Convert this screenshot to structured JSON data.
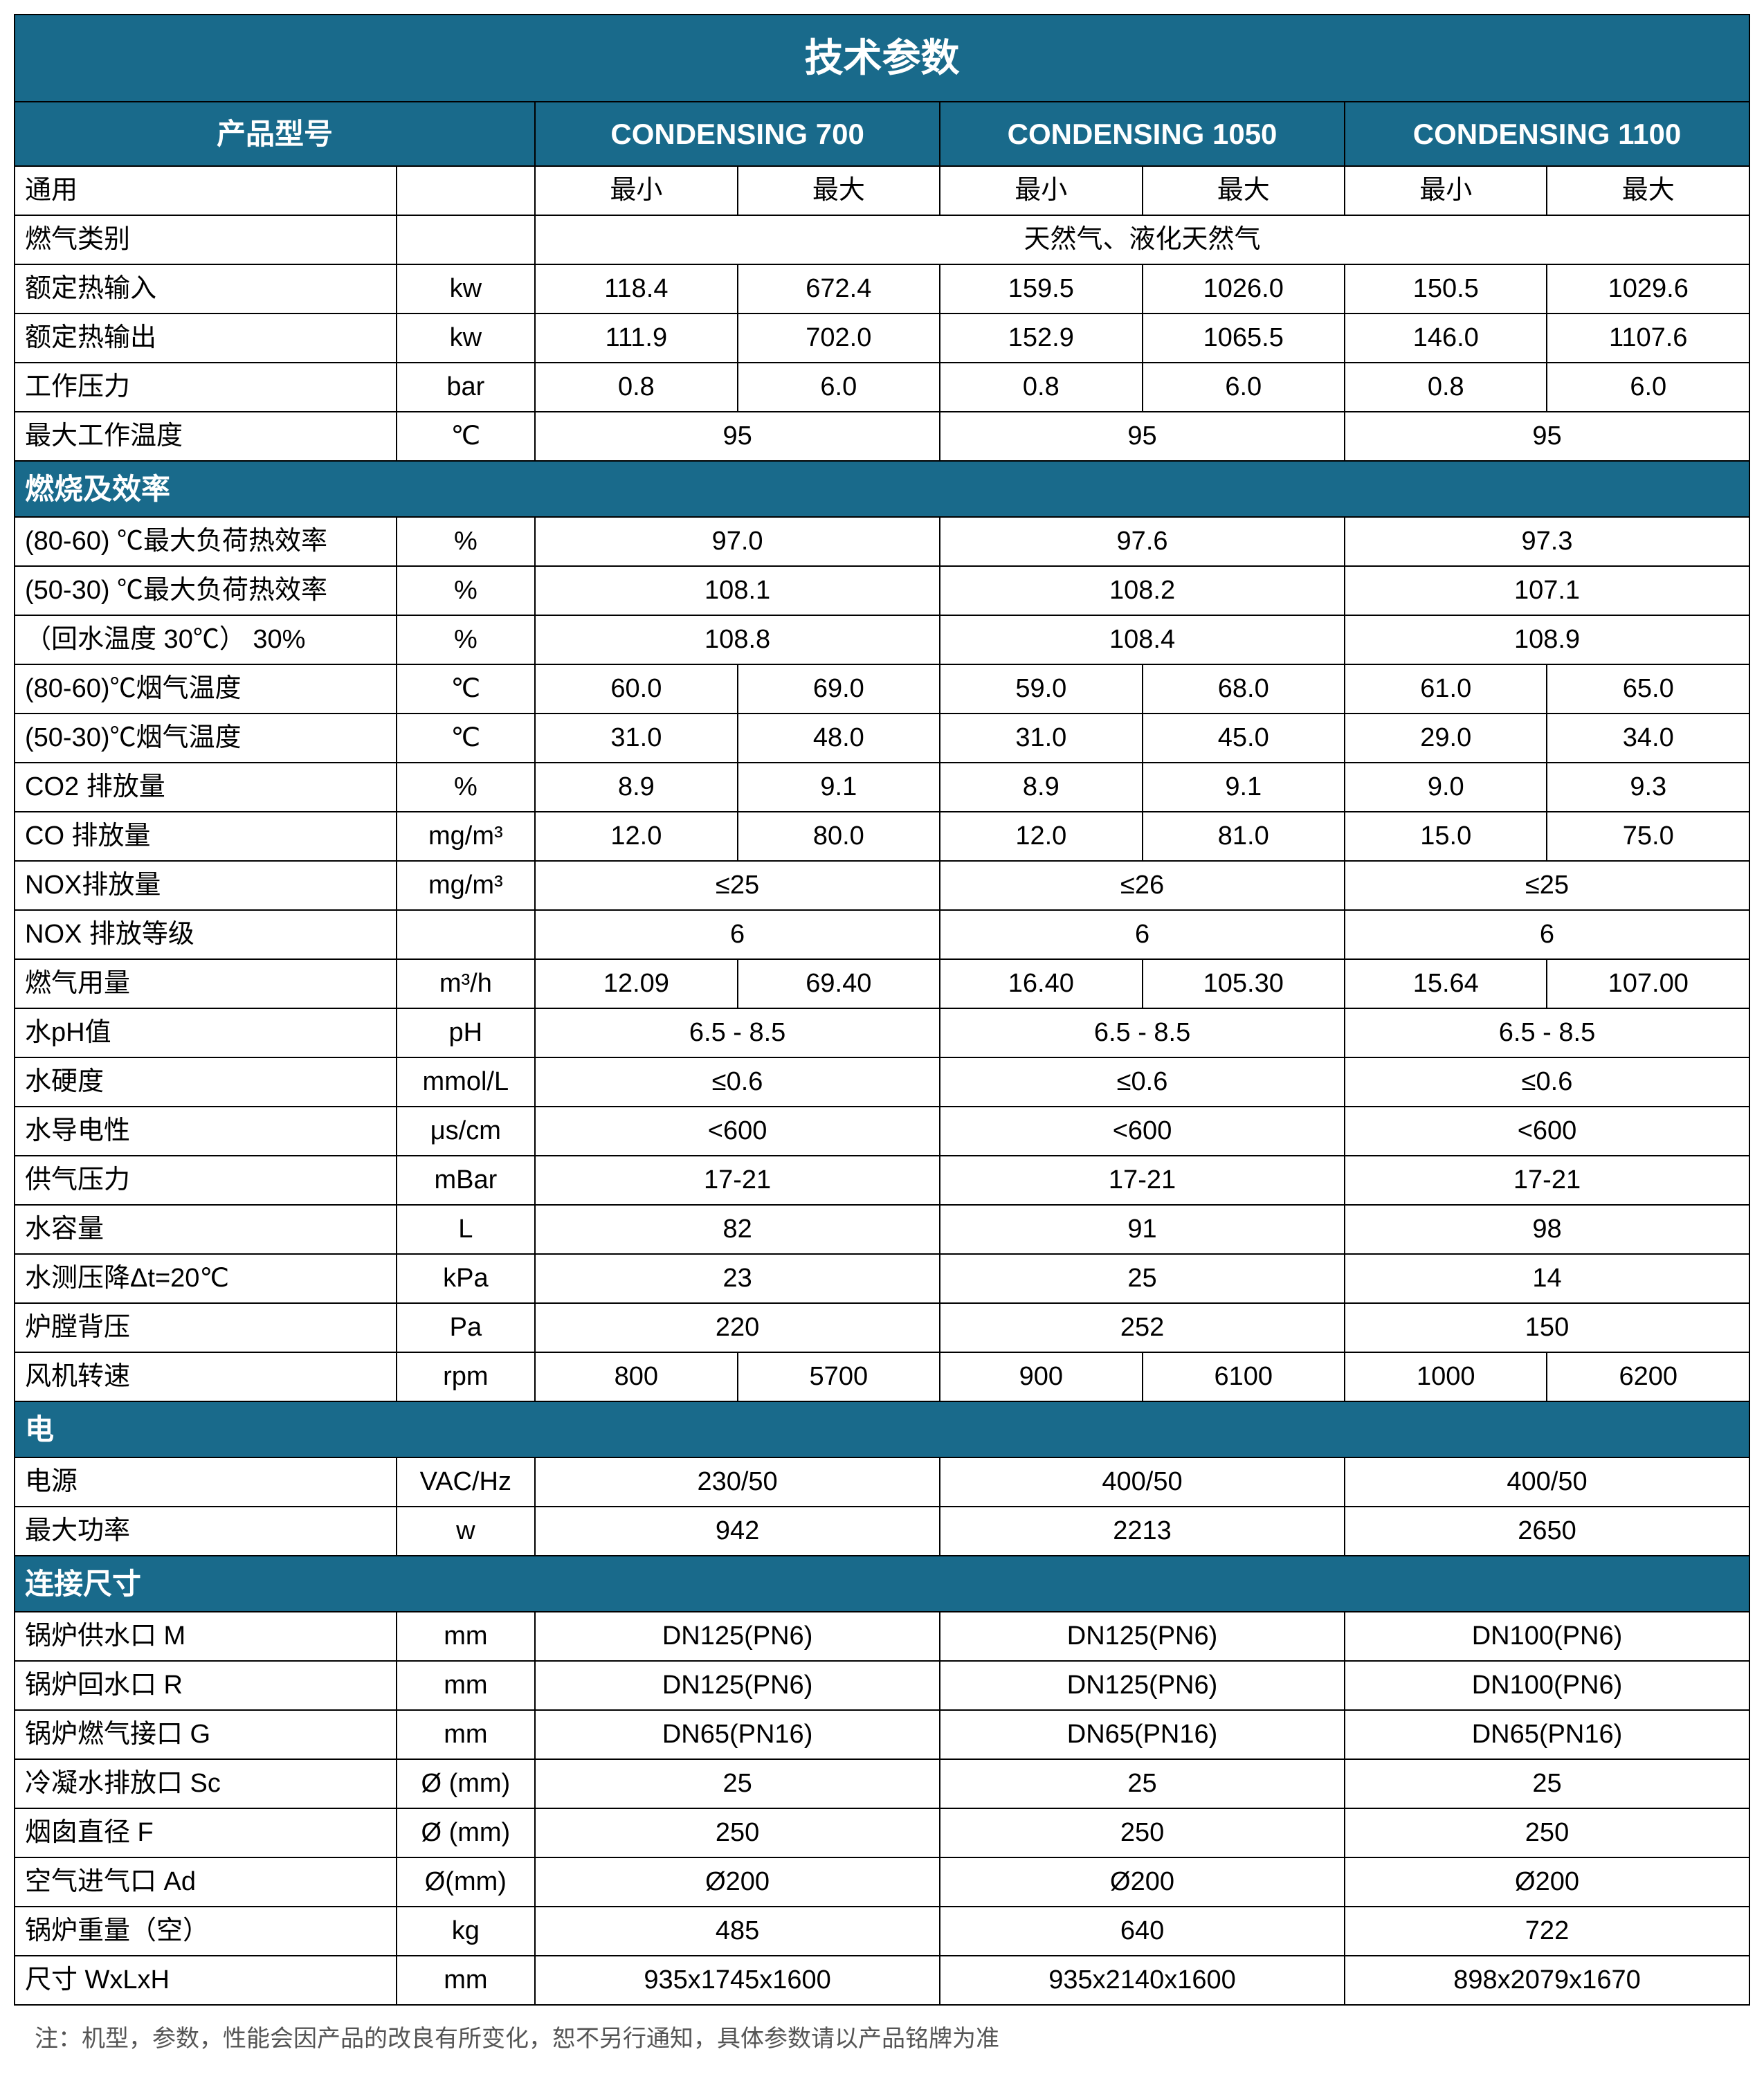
{
  "colors": {
    "header_bg": "#196a8b",
    "header_fg": "#ffffff",
    "border": "#000000",
    "bg": "#ffffff",
    "note": "#555555"
  },
  "title": "技术参数",
  "header": {
    "model_label": "产品型号",
    "products": [
      "CONDENSING 700",
      "CONDENSING 1050",
      "CONDENSING 1100"
    ]
  },
  "minmax": {
    "label": "通用",
    "min": "最小",
    "max": "最大"
  },
  "gas_category": {
    "label": "燃气类别",
    "value": "天然气、液化天然气"
  },
  "rows_general": [
    {
      "label": "额定热输入",
      "unit": "kw",
      "vals": [
        "118.4",
        "672.4",
        "159.5",
        "1026.0",
        "150.5",
        "1029.6"
      ]
    },
    {
      "label": "额定热输出",
      "unit": "kw",
      "vals": [
        "111.9",
        "702.0",
        "152.9",
        "1065.5",
        "146.0",
        "1107.6"
      ]
    },
    {
      "label": "工作压力",
      "unit": "bar",
      "vals": [
        "0.8",
        "6.0",
        "0.8",
        "6.0",
        "0.8",
        "6.0"
      ]
    }
  ],
  "max_temp": {
    "label": "最大工作温度",
    "unit": "℃",
    "vals": [
      "95",
      "95",
      "95"
    ]
  },
  "section_combustion": "燃烧及效率",
  "rows_eff_merge": [
    {
      "label": "(80-60) ℃最大负荷热效率",
      "unit": "%",
      "vals": [
        "97.0",
        "97.6",
        "97.3"
      ]
    },
    {
      "label": "(50-30) ℃最大负荷热效率",
      "unit": "%",
      "vals": [
        "108.1",
        "108.2",
        "107.1"
      ]
    },
    {
      "label": "（回水温度 30℃） 30%",
      "unit": "%",
      "vals": [
        "108.8",
        "108.4",
        "108.9"
      ]
    }
  ],
  "rows_flue": [
    {
      "label": "(80-60)℃烟气温度",
      "unit": "℃",
      "vals": [
        "60.0",
        "69.0",
        "59.0",
        "68.0",
        "61.0",
        "65.0"
      ]
    },
    {
      "label": "(50-30)℃烟气温度",
      "unit": "℃",
      "vals": [
        "31.0",
        "48.0",
        "31.0",
        "45.0",
        "29.0",
        "34.0"
      ]
    },
    {
      "label": "CO2 排放量",
      "unit": "%",
      "vals": [
        "8.9",
        "9.1",
        "8.9",
        "9.1",
        "9.0",
        "9.3"
      ]
    },
    {
      "label": "CO 排放量",
      "unit": "mg/m³",
      "vals": [
        "12.0",
        "80.0",
        "12.0",
        "81.0",
        "15.0",
        "75.0"
      ]
    }
  ],
  "rows_nox": [
    {
      "label": "NOX排放量",
      "unit": "mg/m³",
      "vals": [
        "≤25",
        "≤26",
        "≤25"
      ]
    },
    {
      "label": "NOX 排放等级",
      "unit": "",
      "vals": [
        "6",
        "6",
        "6"
      ]
    }
  ],
  "gas_consumption": {
    "label": "燃气用量",
    "unit": "m³/h",
    "vals": [
      "12.09",
      "69.40",
      "16.40",
      "105.30",
      "15.64",
      "107.00"
    ]
  },
  "rows_water": [
    {
      "label": "水pH值",
      "unit": "pH",
      "vals": [
        "6.5 - 8.5",
        "6.5 - 8.5",
        "6.5 - 8.5"
      ]
    },
    {
      "label": "水硬度",
      "unit": "mmol/L",
      "vals": [
        "≤0.6",
        "≤0.6",
        "≤0.6"
      ]
    },
    {
      "label": "水导电性",
      "unit": "μs/cm",
      "vals": [
        "<600",
        "<600",
        "<600"
      ]
    },
    {
      "label": "供气压力",
      "unit": "mBar",
      "vals": [
        "17-21",
        "17-21",
        "17-21"
      ]
    },
    {
      "label": "水容量",
      "unit": "L",
      "vals": [
        "82",
        "91",
        "98"
      ]
    },
    {
      "label": "水测压降Δt=20℃",
      "unit": "kPa",
      "vals": [
        "23",
        "25",
        "14"
      ]
    },
    {
      "label": "炉膛背压",
      "unit": "Pa",
      "vals": [
        "220",
        "252",
        "150"
      ]
    }
  ],
  "fan_speed": {
    "label": "风机转速",
    "unit": "rpm",
    "vals": [
      "800",
      "5700",
      "900",
      "6100",
      "1000",
      "6200"
    ]
  },
  "section_elec": "电",
  "rows_elec": [
    {
      "label": "电源",
      "unit": "VAC/Hz",
      "vals": [
        "230/50",
        "400/50",
        "400/50"
      ]
    },
    {
      "label": "最大功率",
      "unit": "w",
      "vals": [
        "942",
        "2213",
        "2650"
      ]
    }
  ],
  "section_conn": "连接尺寸",
  "rows_conn": [
    {
      "label": "锅炉供水口  M",
      "unit": "mm",
      "vals": [
        "DN125(PN6)",
        "DN125(PN6)",
        "DN100(PN6)"
      ]
    },
    {
      "label": "锅炉回水口  R",
      "unit": "mm",
      "vals": [
        "DN125(PN6)",
        "DN125(PN6)",
        "DN100(PN6)"
      ]
    },
    {
      "label": "锅炉燃气接口  G",
      "unit": "mm",
      "vals": [
        "DN65(PN16)",
        "DN65(PN16)",
        "DN65(PN16)"
      ]
    },
    {
      "label": "冷凝水排放口  Sc",
      "unit": "Ø (mm)",
      "vals": [
        "25",
        "25",
        "25"
      ]
    },
    {
      "label": "烟囱直径  F",
      "unit": "Ø (mm)",
      "vals": [
        "250",
        "250",
        "250"
      ]
    },
    {
      "label": "空气进气口  Ad",
      "unit": "Ø(mm)",
      "vals": [
        "Ø200",
        "Ø200",
        "Ø200"
      ]
    },
    {
      "label": "锅炉重量（空）",
      "unit": "kg",
      "vals": [
        "485",
        "640",
        "722"
      ]
    },
    {
      "label": "尺寸 WxLxH",
      "unit": "mm",
      "vals": [
        "935x1745x1600",
        "935x2140x1600",
        "898x2079x1670"
      ]
    }
  ],
  "note": "注：机型，参数，性能会因产品的改良有所变化，恕不另行通知，具体参数请以产品铭牌为准"
}
